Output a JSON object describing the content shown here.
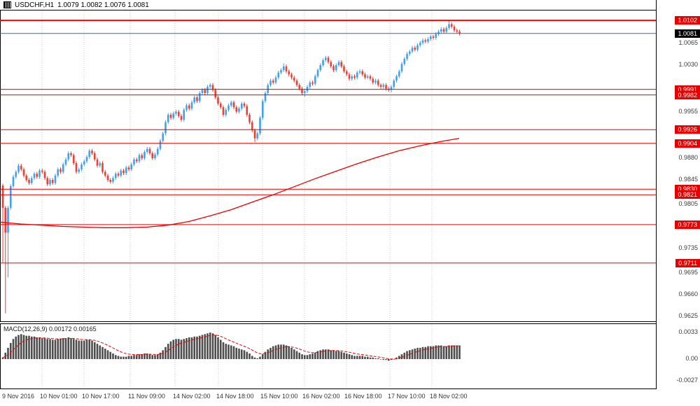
{
  "window": {
    "symbol": "USDCHF,H1",
    "ohlc": "1.0079 1.0082 1.0076 1.0081"
  },
  "colors": {
    "bull": "#42a0ee",
    "bear": "#ee3f35",
    "red_line": "#e60000",
    "bid_line": "#33689e",
    "grid": "#c9c9c9",
    "border": "#000000",
    "macd_bar": "#4d4d4d",
    "macd_signal": "#e60000",
    "ma_line": "#e60000"
  },
  "chart_data": {
    "type": "candlestick",
    "title": "USDCHF,H1",
    "timeframe": "H1",
    "ohlc_display": "1.0079 1.0082 1.0076 1.0081",
    "bid": "1.0081",
    "price_scale": [
      "1.0065",
      "1.0030",
      "0.9955",
      "0.9880",
      "0.9845",
      "0.9805",
      "0.9735",
      "0.9695",
      "0.9660",
      "0.9625"
    ],
    "red_levels": [
      "1.0102",
      "0.9991",
      "0.9982",
      "0.9926",
      "0.9904",
      "0.9830",
      "0.9821",
      "0.9773",
      "0.9711"
    ],
    "thick_levels": [
      "1.0102"
    ],
    "time_labels": [
      "9 Nov 2016",
      "10 Nov 01:00",
      "10 Nov 17:00",
      "11 Nov 09:00",
      "14 Nov 02:00",
      "14 Nov 18:00",
      "15 Nov 10:00",
      "16 Nov 02:00",
      "16 Nov 18:00",
      "17 Nov 10:00",
      "18 Nov 02:00"
    ],
    "y_axis_range": [
      "0.9617",
      "1.0119"
    ],
    "candles": {
      "first_open_e4": 9836,
      "default_wick_e4": 3,
      "closes_e4": [
        9800,
        9760,
        9800,
        9835,
        9850,
        9858,
        9868,
        9862,
        9852,
        9845,
        9840,
        9848,
        9855,
        9850,
        9860,
        9858,
        9848,
        9838,
        9845,
        9840,
        9852,
        9862,
        9858,
        9870,
        9878,
        9888,
        9885,
        9872,
        9858,
        9862,
        9870,
        9875,
        9882,
        9892,
        9888,
        9878,
        9868,
        9872,
        9858,
        9852,
        9845,
        9842,
        9848,
        9855,
        9852,
        9860,
        9856,
        9865,
        9862,
        9870,
        9878,
        9875,
        9885,
        9880,
        9890,
        9895,
        9888,
        9880,
        9886,
        9895,
        9908,
        9920,
        9938,
        9950,
        9945,
        9952,
        9955,
        9948,
        9942,
        9958,
        9965,
        9960,
        9970,
        9978,
        9972,
        9985,
        9990,
        9985,
        9995,
        9998,
        9990,
        9978,
        9968,
        9962,
        9950,
        9958,
        9965,
        9970,
        9962,
        9955,
        9960,
        9968,
        9964,
        9950,
        9938,
        9925,
        9912,
        9920,
        9945,
        9972,
        9985,
        9998,
        10005,
        10002,
        10010,
        10018,
        10022,
        10028,
        10020,
        10015,
        10010,
        10005,
        9998,
        9992,
        9985,
        9988,
        9995,
        10002,
        10000,
        10012,
        10022,
        10030,
        10038,
        10042,
        10035,
        10028,
        10022,
        10030,
        10035,
        10028,
        10020,
        10015,
        10008,
        10012,
        10010,
        10018,
        10020,
        10015,
        10010,
        10012,
        10008,
        10002,
        10005,
        9998,
        9995,
        9998,
        9992,
        9990,
        9995,
        10005,
        10012,
        10020,
        10032,
        10040,
        10048,
        10052,
        10058,
        10055,
        10062,
        10066,
        10070,
        10068,
        10072,
        10076,
        10074,
        10080,
        10084,
        10088,
        10084,
        10090,
        10096,
        10092,
        10086,
        10084,
        10081
      ],
      "wick_overrides": {
        "0": {
          "low": 9712
        },
        "1": {
          "low": 9630
        },
        "2": {
          "low": 9688
        },
        "96": {
          "low": 9906
        },
        "107": {
          "high": 10033
        },
        "115": {
          "low": 9979
        },
        "148": {
          "low": 9986
        },
        "170": {
          "high": 10102
        }
      }
    },
    "ma_points_e4": [
      [
        0,
        9777
      ],
      [
        30,
        9774
      ],
      [
        60,
        9772
      ],
      [
        90,
        9770
      ],
      [
        120,
        9769
      ],
      [
        150,
        9768
      ],
      [
        180,
        9768
      ],
      [
        210,
        9769
      ],
      [
        240,
        9772
      ],
      [
        270,
        9778
      ],
      [
        300,
        9787
      ],
      [
        330,
        9797
      ],
      [
        360,
        9809
      ],
      [
        390,
        9821
      ],
      [
        420,
        9834
      ],
      [
        450,
        9847
      ],
      [
        480,
        9859
      ],
      [
        510,
        9871
      ],
      [
        540,
        9882
      ],
      [
        570,
        9892
      ],
      [
        600,
        9900
      ],
      [
        630,
        9907
      ],
      [
        656,
        9912
      ]
    ],
    "macd": {
      "label": "MACD(12,26,9) 0.00172 0.00165",
      "axis_labels": [
        "0.0033",
        "0.00",
        "-0.0027"
      ],
      "values_e4": [
        2,
        8,
        14,
        20,
        25,
        28,
        30,
        31,
        30,
        29,
        29,
        28,
        28,
        27,
        27,
        26,
        26,
        25,
        25,
        24,
        24,
        25,
        25,
        26,
        26,
        27,
        26,
        25,
        24,
        23,
        23,
        23,
        24,
        24,
        23,
        21,
        19,
        17,
        15,
        13,
        11,
        9,
        7,
        5,
        4,
        3,
        3,
        3,
        4,
        4,
        5,
        5,
        6,
        6,
        7,
        7,
        6,
        5,
        5,
        6,
        8,
        11,
        15,
        19,
        22,
        24,
        25,
        25,
        24,
        25,
        26,
        27,
        27,
        28,
        28,
        29,
        30,
        31,
        32,
        33,
        32,
        30,
        27,
        24,
        21,
        19,
        18,
        17,
        16,
        14,
        13,
        12,
        11,
        9,
        7,
        4,
        2,
        1,
        3,
        6,
        9,
        12,
        14,
        16,
        17,
        18,
        18,
        18,
        17,
        16,
        14,
        12,
        10,
        8,
        6,
        5,
        5,
        6,
        7,
        8,
        10,
        11,
        12,
        12,
        12,
        11,
        11,
        10,
        10,
        9,
        8,
        7,
        6,
        5,
        4,
        4,
        4,
        4,
        3,
        3,
        2,
        2,
        1,
        1,
        0,
        -1,
        -1,
        -2,
        -1,
        0,
        2,
        4,
        6,
        8,
        10,
        11,
        12,
        13,
        14,
        14,
        15,
        15,
        16,
        16,
        16,
        17,
        17,
        17,
        16,
        16,
        17,
        17,
        17,
        17,
        17
      ]
    }
  }
}
